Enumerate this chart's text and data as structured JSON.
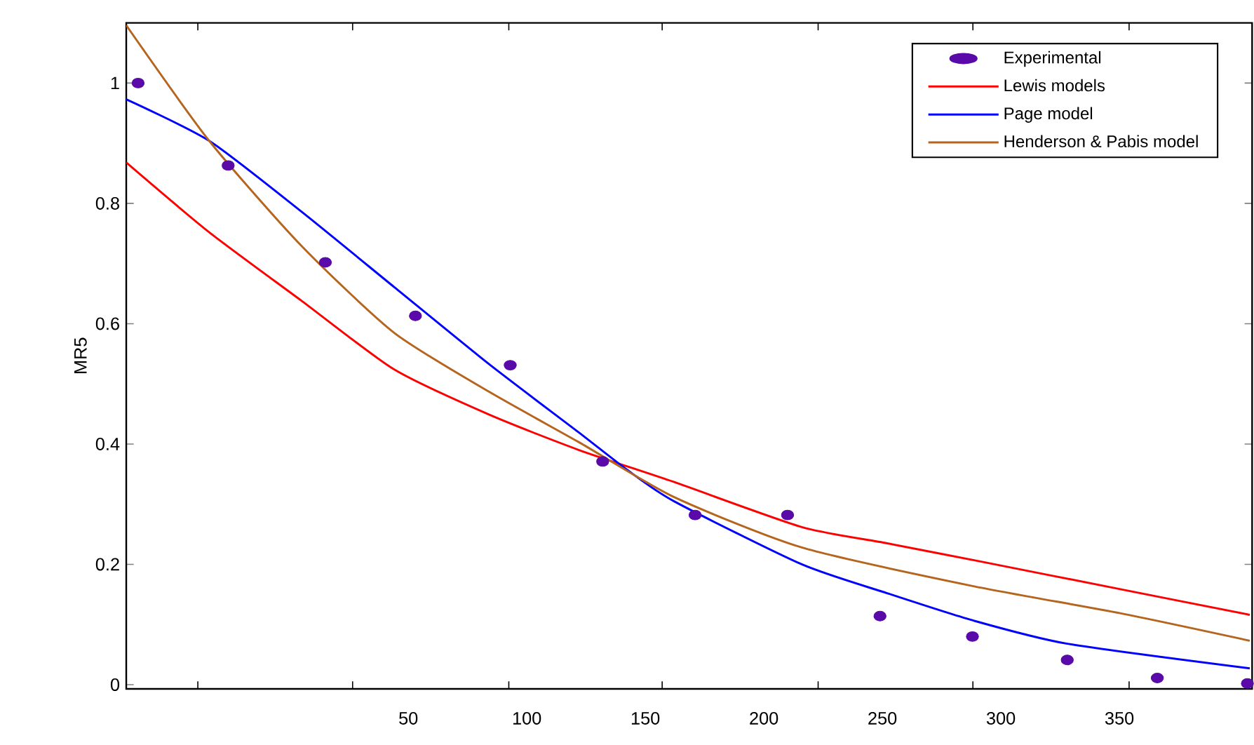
{
  "chart_data": {
    "type": "line",
    "ylabel": "MR5",
    "xlim": [
      -69,
      406
    ],
    "ylim": [
      -0.007,
      1.1
    ],
    "xticks": [
      {
        "value": -38.8,
        "label": null
      },
      {
        "value": 26.5,
        "label": null
      },
      {
        "value": 50,
        "label": "50"
      },
      {
        "value": 92.4,
        "label": null
      },
      {
        "value": 100,
        "label": "100"
      },
      {
        "value": 150,
        "label": "150"
      },
      {
        "value": 157.1,
        "label": null
      },
      {
        "value": 200,
        "label": "200"
      },
      {
        "value": 222.9,
        "label": null
      },
      {
        "value": 250,
        "label": "250"
      },
      {
        "value": 288.2,
        "label": null
      },
      {
        "value": 300,
        "label": "300"
      },
      {
        "value": 350,
        "label": "350"
      },
      {
        "value": 354.1,
        "label": null
      }
    ],
    "yticks": [
      0,
      0.2,
      0.4,
      0.6,
      0.8,
      1
    ],
    "legend": "top right",
    "grid": false,
    "series": [
      {
        "name": "Experimental",
        "type": "scatter",
        "color": "#5a0aa8",
        "x": [
          -64,
          -26,
          15,
          53,
          93,
          132,
          171,
          210,
          249,
          288,
          328,
          366,
          404
        ],
        "values": [
          1.0,
          0.863,
          0.702,
          0.613,
          0.531,
          0.371,
          0.282,
          0.282,
          0.114,
          0.08,
          0.041,
          0.011,
          0.002
        ]
      },
      {
        "name": "Lewis models",
        "color": "#ff0000",
        "x": [
          -69,
          -34,
          5,
          44,
          84,
          122,
          162,
          216,
          252,
          291,
          350,
          405
        ],
        "values": [
          0.868,
          0.752,
          0.638,
          0.524,
          0.449,
          0.39,
          0.337,
          0.262,
          0.235,
          0.205,
          0.159,
          0.116
        ]
      },
      {
        "name": "Page model",
        "color": "#0000ff",
        "x": [
          -69,
          -34,
          5,
          44,
          84,
          122,
          142,
          162,
          216,
          252,
          288,
          328,
          405
        ],
        "values": [
          0.973,
          0.904,
          0.786,
          0.661,
          0.533,
          0.419,
          0.358,
          0.305,
          0.2,
          0.152,
          0.107,
          0.068,
          0.027
        ]
      },
      {
        "name": "Henderson & Pabis model",
        "color": "#b5651d",
        "x": [
          -69,
          -34,
          5,
          44,
          84,
          122,
          162,
          216,
          288,
          350,
          405
        ],
        "values": [
          1.096,
          0.904,
          0.729,
          0.585,
          0.487,
          0.403,
          0.312,
          0.228,
          0.164,
          0.119,
          0.073
        ]
      }
    ]
  }
}
